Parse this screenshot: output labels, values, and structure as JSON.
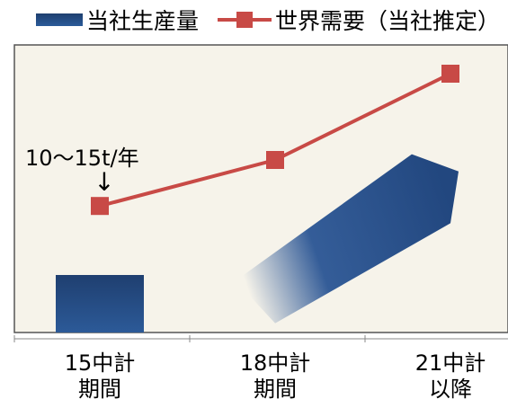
{
  "legend": {
    "bar_label": "当社生産量",
    "line_label": "世界需要（当社推定）"
  },
  "annotation": {
    "text": "10～15t/年",
    "arrow": "↓"
  },
  "chart_data": {
    "type": "bar",
    "categories": [
      [
        "15中計",
        "期間"
      ],
      [
        "18中計",
        "期間"
      ],
      [
        "21中計",
        "以降"
      ]
    ],
    "series": [
      {
        "name": "当社生産量",
        "type": "bar",
        "values": [
          1,
          null,
          null
        ]
      },
      {
        "name": "世界需要（当社推定）",
        "type": "line",
        "values": [
          2.2,
          3.0,
          4.5
        ]
      }
    ],
    "projection": {
      "type": "arrow",
      "from": 1,
      "to": 2
    },
    "ylim": [
      0,
      5
    ],
    "grid": false,
    "legend_position": "top",
    "colors": {
      "bar": "#1f3f70",
      "line": "#c84a46",
      "plot_bg": "#f6f3ea",
      "frame": "#555555",
      "axis": "#888888"
    }
  }
}
